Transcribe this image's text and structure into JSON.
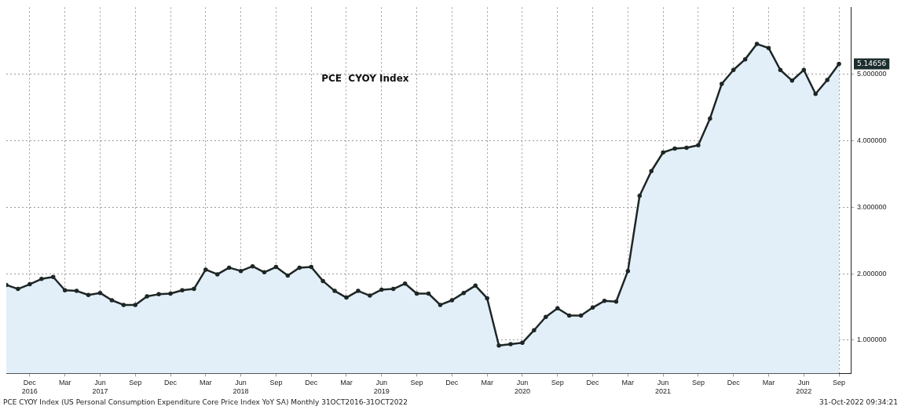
{
  "chart_data": {
    "type": "area",
    "title": "PCE  CYOY Index",
    "x": [
      "2016-10",
      "2016-11",
      "2016-12",
      "2017-01",
      "2017-02",
      "2017-03",
      "2017-04",
      "2017-05",
      "2017-06",
      "2017-07",
      "2017-08",
      "2017-09",
      "2017-10",
      "2017-11",
      "2017-12",
      "2018-01",
      "2018-02",
      "2018-03",
      "2018-04",
      "2018-05",
      "2018-06",
      "2018-07",
      "2018-08",
      "2018-09",
      "2018-10",
      "2018-11",
      "2018-12",
      "2019-01",
      "2019-02",
      "2019-03",
      "2019-04",
      "2019-05",
      "2019-06",
      "2019-07",
      "2019-08",
      "2019-09",
      "2019-10",
      "2019-11",
      "2019-12",
      "2020-01",
      "2020-02",
      "2020-03",
      "2020-04",
      "2020-05",
      "2020-06",
      "2020-07",
      "2020-08",
      "2020-09",
      "2020-10",
      "2020-11",
      "2020-12",
      "2021-01",
      "2021-02",
      "2021-03",
      "2021-04",
      "2021-05",
      "2021-06",
      "2021-07",
      "2021-08",
      "2021-09",
      "2021-10",
      "2021-11",
      "2021-12",
      "2022-01",
      "2022-02",
      "2022-03",
      "2022-04",
      "2022-05",
      "2022-06",
      "2022-07",
      "2022-08",
      "2022-09"
    ],
    "series": [
      {
        "color": "#1e2626",
        "values": [
          1.83,
          1.77,
          1.84,
          1.92,
          1.95,
          1.75,
          1.74,
          1.68,
          1.71,
          1.6,
          1.53,
          1.53,
          1.66,
          1.69,
          1.7,
          1.75,
          1.77,
          2.06,
          1.99,
          2.09,
          2.04,
          2.11,
          2.02,
          2.1,
          1.97,
          2.09,
          2.1,
          1.89,
          1.74,
          1.64,
          1.74,
          1.67,
          1.76,
          1.77,
          1.85,
          1.7,
          1.7,
          1.53,
          1.6,
          1.71,
          1.82,
          1.63,
          0.92,
          0.94,
          0.96,
          1.15,
          1.35,
          1.48,
          1.37,
          1.37,
          1.49,
          1.59,
          1.58,
          2.04,
          3.17,
          3.54,
          3.82,
          3.88,
          3.89,
          3.93,
          4.33,
          4.85,
          5.06,
          5.22,
          5.45,
          5.39,
          5.06,
          4.9,
          5.06,
          4.7,
          4.91,
          5.15
        ]
      }
    ],
    "xlim": [
      "2016-10",
      "2022-10"
    ],
    "xticks": [
      {
        "value": "2016-12",
        "label": "Dec 2016"
      },
      {
        "value": "2017-03",
        "label": "Mar"
      },
      {
        "value": "2017-06",
        "label": "Jun 2017"
      },
      {
        "value": "2017-09",
        "label": "Sep"
      },
      {
        "value": "2017-12",
        "label": "Dec"
      },
      {
        "value": "2018-03",
        "label": "Mar"
      },
      {
        "value": "2018-06",
        "label": "Jun 2018"
      },
      {
        "value": "2018-09",
        "label": "Sep"
      },
      {
        "value": "2018-12",
        "label": "Dec"
      },
      {
        "value": "2019-03",
        "label": "Mar"
      },
      {
        "value": "2019-06",
        "label": "Jun 2019"
      },
      {
        "value": "2019-09",
        "label": "Sep"
      },
      {
        "value": "2019-12",
        "label": "Dec"
      },
      {
        "value": "2020-03",
        "label": "Mar"
      },
      {
        "value": "2020-06",
        "label": "Jun 2020"
      },
      {
        "value": "2020-09",
        "label": "Sep"
      },
      {
        "value": "2020-12",
        "label": "Dec"
      },
      {
        "value": "2021-03",
        "label": "Mar"
      },
      {
        "value": "2021-06",
        "label": "Jun 2021"
      },
      {
        "value": "2021-09",
        "label": "Sep"
      },
      {
        "value": "2021-12",
        "label": "Dec"
      },
      {
        "value": "2022-03",
        "label": "Mar"
      },
      {
        "value": "2022-06",
        "label": "Jun 2022"
      },
      {
        "value": "2022-09",
        "label": "Sep"
      }
    ],
    "ylim": [
      0.5,
      6.0
    ],
    "yticks": [
      {
        "value": 1,
        "label": "1.000000"
      },
      {
        "value": 2,
        "label": "2.000000"
      },
      {
        "value": 3,
        "label": "3.000000"
      },
      {
        "value": 4,
        "label": "4.000000"
      },
      {
        "value": 5,
        "label": "5.000000"
      }
    ],
    "grid": true,
    "marker": "circle",
    "line_style": "solid",
    "annotations": [
      {
        "text": "5.14656",
        "x": "2022-09",
        "y": 5.15
      },
      "PCE CYOY Index (US Personal Consumption Expenditure Core Price Index YoY SA)  Monthly 31OCT2016-31OCT2022",
      "31-Oct-2022 09:34:21"
    ]
  }
}
